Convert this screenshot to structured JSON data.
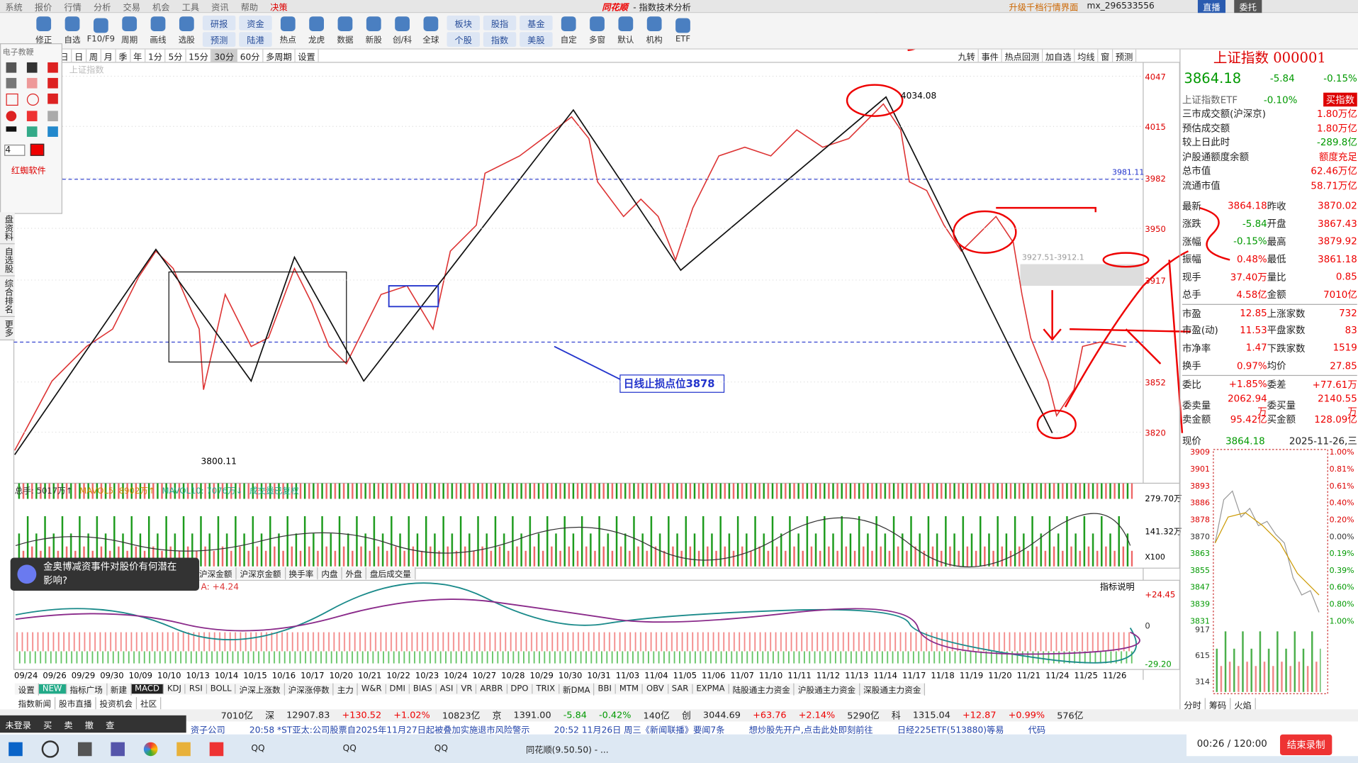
{
  "menu": [
    "系统",
    "报价",
    "行情",
    "分析",
    "交易",
    "机会",
    "工具",
    "资讯",
    "帮助",
    "决策"
  ],
  "app_title": "同花顺",
  "window_title": "- 指数技术分析",
  "top_right": {
    "upgrade": "升级千档行情界面",
    "user": "mx_296533556",
    "live": "直播",
    "order": "委托"
  },
  "toolbar": [
    [
      "修正"
    ],
    [
      "自选"
    ],
    [
      "F10/F9"
    ],
    [
      "周期"
    ],
    [
      "画线"
    ],
    [
      "选股"
    ],
    [
      "研报",
      "预测"
    ],
    [
      "资金",
      "陆港"
    ],
    [
      "热点"
    ],
    [
      "龙虎"
    ],
    [
      "数据"
    ],
    [
      "新股"
    ],
    [
      "创/科"
    ],
    [
      "全球"
    ],
    [
      "板块",
      "个股"
    ],
    [
      "股指",
      "指数"
    ],
    [
      "基金",
      "美股"
    ],
    [
      "自定"
    ],
    [
      "多窗"
    ],
    [
      "默认"
    ],
    [
      "机构"
    ],
    [
      "ETF"
    ]
  ],
  "periods": [
    "日",
    "日",
    "周",
    "月",
    "季",
    "年",
    "1分",
    "5分",
    "15分",
    "30分",
    "60分",
    "多周期",
    "设置"
  ],
  "period_right": [
    "九转",
    "事件",
    "热点回测",
    "加自选",
    "均线",
    "窗",
    "预测"
  ],
  "tools": {
    "title": "电子教鞭",
    "width": "4",
    "brand": "红蜘软件"
  },
  "side_tabs": [
    "盘资料",
    "自选股",
    "综合排名",
    "更多"
  ],
  "chart": {
    "ghost_title": "上证指数",
    "price_axis": [
      {
        "value": 4047,
        "label": "4047"
      },
      {
        "value": 4015,
        "label": "4015"
      },
      {
        "value": 3982,
        "label": "3982"
      },
      {
        "value": 3950,
        "label": "3950"
      },
      {
        "value": 3917,
        "label": "3917"
      },
      {
        "value": 3852,
        "label": "3852"
      },
      {
        "value": 3820,
        "label": "3820"
      }
    ],
    "high": "4034.08",
    "low": "3800.11",
    "line_label": "3981.11",
    "gap": "3927.51-3912.1",
    "stop": "日线止损点位3878"
  },
  "volume": {
    "legend": [
      "总手: 5017万↑",
      "MAVOL5: 8902万↑",
      "MAVOL10: 7076万↓",
      "成交量已复权"
    ],
    "axis": [
      "279.70万",
      "141.32万"
    ],
    "unit": "X100"
  },
  "mid_tabs": [
    "沪深金额",
    "沪深京金额",
    "换手率",
    "内盘",
    "外盘",
    "盘后成交量"
  ],
  "popup": "金奥博减资事件对股价有何潜在影响?",
  "macd": {
    "help": "指标说明",
    "value": "A: +4.24",
    "axis": [
      "+24.45",
      "0",
      "-29.20"
    ]
  },
  "dates": [
    "09/24",
    "09/26",
    "09/29",
    "09/30",
    "10/09",
    "10/10",
    "10/13",
    "10/14",
    "10/15",
    "10/16",
    "10/17",
    "10/20",
    "10/21",
    "10/22",
    "10/23",
    "10/24",
    "10/27",
    "10/28",
    "10/29",
    "10/30",
    "10/31",
    "11/03",
    "11/04",
    "11/05",
    "11/06",
    "11/07",
    "11/10",
    "11/11",
    "11/12",
    "11/13",
    "11/14",
    "11/17",
    "11/18",
    "11/19",
    "11/20",
    "11/21",
    "11/24",
    "11/25",
    "11/26"
  ],
  "indicators": [
    "设置",
    "NEW",
    "指标广场",
    "新建",
    "MACD",
    "KDJ",
    "RSI",
    "BOLL",
    "沪深上涨数",
    "沪深涨停数",
    "主力",
    "W&R",
    "DMI",
    "BIAS",
    "ASI",
    "VR",
    "ARBR",
    "DPO",
    "TRIX",
    "新DMA",
    "BBI",
    "MTM",
    "OBV",
    "SAR",
    "EXPMA",
    "陆股通主力资金",
    "沪股通主力资金",
    "深股通主力资金"
  ],
  "news_tabs": [
    "指数新闻",
    "股市直播",
    "投资机会",
    "社区"
  ],
  "status": [
    "7010亿",
    "深",
    "12907.83",
    "+130.52",
    "+1.02%",
    "10823亿",
    "京",
    "1391.00",
    "-5.84",
    "-0.42%",
    "140亿",
    "创",
    "3044.69",
    "+63.76",
    "+2.14%",
    "5290亿",
    "科",
    "1315.04",
    "+12.87",
    "+0.99%",
    "576亿"
  ],
  "ticker": [
    "资子公司",
    "20:58 *ST亚太:公司股票自2025年11月27日起被叠加实施退市风险警示",
    "20:52 11月26日 周三《新闻联播》要闻7条",
    "想炒股先开户,点击此处即刻前往",
    "日经225ETF(513880)等易",
    "代码"
  ],
  "float_bar": [
    "未登录",
    "买",
    "卖",
    "撤",
    "查"
  ],
  "taskbar": [
    "QQ",
    "QQ",
    "QQ",
    "同花顺(9.50.50) - ..."
  ],
  "recording": {
    "time": "00:26 / 120:00",
    "stop": "结束录制"
  },
  "right_panel": {
    "name": "上证指数 000001",
    "price": "3864.18",
    "change": "-5.84",
    "pct": "-0.15%",
    "etf": "上证指数ETF",
    "etf_pct": "-0.10%",
    "etf_btn": "买指数",
    "summary": [
      [
        "三市成交额(沪深京)",
        "1.80万亿"
      ],
      [
        "预估成交额",
        "1.80万亿"
      ],
      [
        "较上日此时",
        "-289.8亿"
      ],
      [
        "沪股通额度余额",
        "额度充足"
      ],
      [
        "总市值",
        "62.46万亿"
      ],
      [
        "流通市值",
        "58.71万亿"
      ]
    ],
    "quotes": [
      [
        "最新",
        "3864.18",
        "昨收",
        "3870.02"
      ],
      [
        "涨跌",
        "-5.84",
        "开盘",
        "3867.43"
      ],
      [
        "涨幅",
        "-0.15%",
        "最高",
        "3879.92"
      ],
      [
        "振幅",
        "0.48%",
        "最低",
        "3861.18"
      ],
      [
        "现手",
        "37.40万",
        "量比",
        "0.85"
      ],
      [
        "总手",
        "4.58亿",
        "金额",
        "7010亿"
      ],
      [
        "市盈",
        "12.85",
        "上涨家数",
        "732"
      ],
      [
        "市盈(动)",
        "11.53",
        "平盘家数",
        "83"
      ],
      [
        "市净率",
        "1.47",
        "下跌家数",
        "1519"
      ],
      [
        "换手",
        "0.97%",
        "均价",
        "27.85"
      ],
      [
        "委比",
        "+1.85%",
        "委差",
        "+77.61万"
      ],
      [
        "委卖量",
        "2062.94万",
        "委买量",
        "2140.55万"
      ],
      [
        "卖金额",
        "95.42亿",
        "买金额",
        "128.09亿"
      ]
    ],
    "intraday": {
      "label": "现价",
      "price": "3864.18",
      "date": "2025-11-26,三",
      "left_axis": [
        "3909",
        "3901",
        "3893",
        "3886",
        "3878",
        "3870",
        "3863",
        "3855",
        "3847",
        "3839",
        "3831",
        "917",
        "615",
        "314"
      ],
      "right_axis": [
        "1.00%",
        "0.81%",
        "0.61%",
        "0.40%",
        "0.20%",
        "0.00%",
        "0.19%",
        "0.39%",
        "0.60%",
        "0.80%",
        "1.00%"
      ]
    },
    "tabs": [
      "分时",
      "筹码",
      "火焰"
    ]
  }
}
